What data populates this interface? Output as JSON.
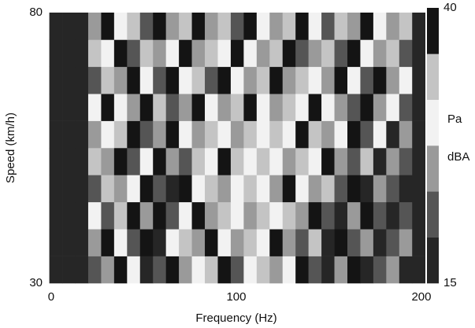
{
  "chart_data": {
    "type": "heatmap",
    "xlabel": "Frequency (Hz)",
    "ylabel": "Speed (km/h)",
    "xbins": [
      -1,
      6,
      13,
      20,
      27,
      34,
      41,
      48,
      55,
      62,
      69,
      76,
      83,
      90,
      97,
      104,
      111,
      118,
      125,
      132,
      139,
      146,
      153,
      160,
      167,
      174,
      181,
      188,
      195,
      202
    ],
    "ybins": [
      30,
      35,
      40,
      45,
      50,
      55,
      60,
      65,
      70,
      75,
      80
    ],
    "z": [
      [
        16,
        16,
        17,
        21,
        25,
        38,
        29,
        17,
        21,
        38,
        25,
        29,
        33,
        38,
        21,
        29,
        33,
        25,
        29,
        38,
        21,
        17,
        25,
        38,
        17,
        21,
        25,
        17,
        16
      ],
      [
        16,
        17,
        16,
        25,
        38,
        29,
        21,
        38,
        17,
        29,
        33,
        25,
        38,
        29,
        25,
        33,
        29,
        38,
        25,
        21,
        33,
        17,
        38,
        21,
        25,
        17,
        21,
        25,
        17
      ],
      [
        17,
        16,
        16,
        29,
        21,
        33,
        38,
        25,
        38,
        21,
        29,
        38,
        25,
        33,
        29,
        25,
        33,
        29,
        33,
        25,
        38,
        21,
        17,
        25,
        38,
        21,
        17,
        21,
        16
      ],
      [
        16,
        16,
        17,
        21,
        33,
        25,
        29,
        38,
        21,
        17,
        38,
        29,
        33,
        25,
        29,
        33,
        29,
        25,
        38,
        29,
        25,
        33,
        21,
        38,
        17,
        25,
        21,
        17,
        17
      ],
      [
        16,
        17,
        16,
        33,
        25,
        38,
        21,
        29,
        38,
        25,
        21,
        33,
        29,
        38,
        33,
        29,
        33,
        29,
        25,
        33,
        29,
        38,
        25,
        21,
        33,
        17,
        25,
        21,
        16
      ],
      [
        17,
        16,
        16,
        25,
        29,
        33,
        38,
        21,
        25,
        38,
        29,
        25,
        33,
        29,
        25,
        33,
        29,
        33,
        29,
        38,
        33,
        25,
        29,
        38,
        21,
        29,
        17,
        25,
        17
      ],
      [
        16,
        16,
        17,
        29,
        38,
        29,
        25,
        38,
        33,
        21,
        25,
        38,
        29,
        25,
        33,
        38,
        29,
        25,
        33,
        29,
        38,
        29,
        25,
        21,
        38,
        25,
        29,
        21,
        16
      ],
      [
        16,
        17,
        16,
        21,
        33,
        25,
        38,
        29,
        21,
        38,
        29,
        33,
        21,
        38,
        29,
        25,
        33,
        38,
        25,
        33,
        29,
        25,
        38,
        29,
        21,
        38,
        25,
        29,
        17
      ],
      [
        17,
        16,
        16,
        33,
        29,
        38,
        21,
        33,
        25,
        29,
        38,
        25,
        33,
        29,
        38,
        29,
        25,
        33,
        38,
        21,
        25,
        33,
        21,
        38,
        29,
        25,
        33,
        21,
        16
      ],
      [
        16,
        16,
        17,
        25,
        38,
        29,
        33,
        21,
        38,
        25,
        33,
        38,
        25,
        33,
        21,
        38,
        29,
        25,
        33,
        38,
        29,
        21,
        33,
        25,
        38,
        29,
        25,
        33,
        17
      ]
    ],
    "xlim": [
      -1,
      202
    ],
    "ylim": [
      30,
      80
    ],
    "xticks": [
      0,
      100,
      200
    ],
    "yticks": [
      30,
      80
    ],
    "zlim": [
      15,
      40
    ],
    "zticks": [
      15,
      40
    ],
    "colorbar_labels": [
      "Pa",
      "dBA"
    ],
    "colors": [
      "#262626",
      "#555555",
      "#9a9a9a",
      "#f2f2f2",
      "#c4c4c4",
      "#141414"
    ]
  }
}
